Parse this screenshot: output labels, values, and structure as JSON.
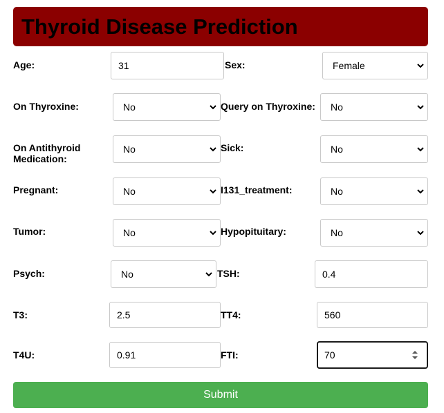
{
  "header": {
    "title": "Thyroid Disease Prediction",
    "background_color": "#8b0000"
  },
  "fields": {
    "age": {
      "label": "Age:",
      "value": "31"
    },
    "sex": {
      "label": "Sex:",
      "value": "Female"
    },
    "on_thyroxine": {
      "label": "On Thyroxine:",
      "value": "No"
    },
    "query_on_thyroxine": {
      "label": "Query on Thyroxine:",
      "value": "No"
    },
    "on_antithyroid_medication": {
      "label_line1": "On Antithyroid",
      "label_line2": "Medication:",
      "value": "No"
    },
    "sick": {
      "label": "Sick:",
      "value": "No"
    },
    "pregnant": {
      "label": "Pregnant:",
      "value": "No"
    },
    "i131_treatment": {
      "label": "I131_treatment:",
      "value": "No"
    },
    "tumor": {
      "label": "Tumor:",
      "value": "No"
    },
    "hypopituitary": {
      "label": "Hypopituitary:",
      "value": "No"
    },
    "psych": {
      "label": "Psych:",
      "value": "No"
    },
    "tsh": {
      "label": "TSH:",
      "value": "0.4"
    },
    "t3": {
      "label": "T3:",
      "value": "2.5"
    },
    "tt4": {
      "label": "TT4:",
      "value": "560"
    },
    "t4u": {
      "label": "T4U:",
      "value": "0.91"
    },
    "fti": {
      "label": "FTI:",
      "value": "70"
    }
  },
  "submit": {
    "label": "Submit",
    "color": "#4caf50"
  }
}
